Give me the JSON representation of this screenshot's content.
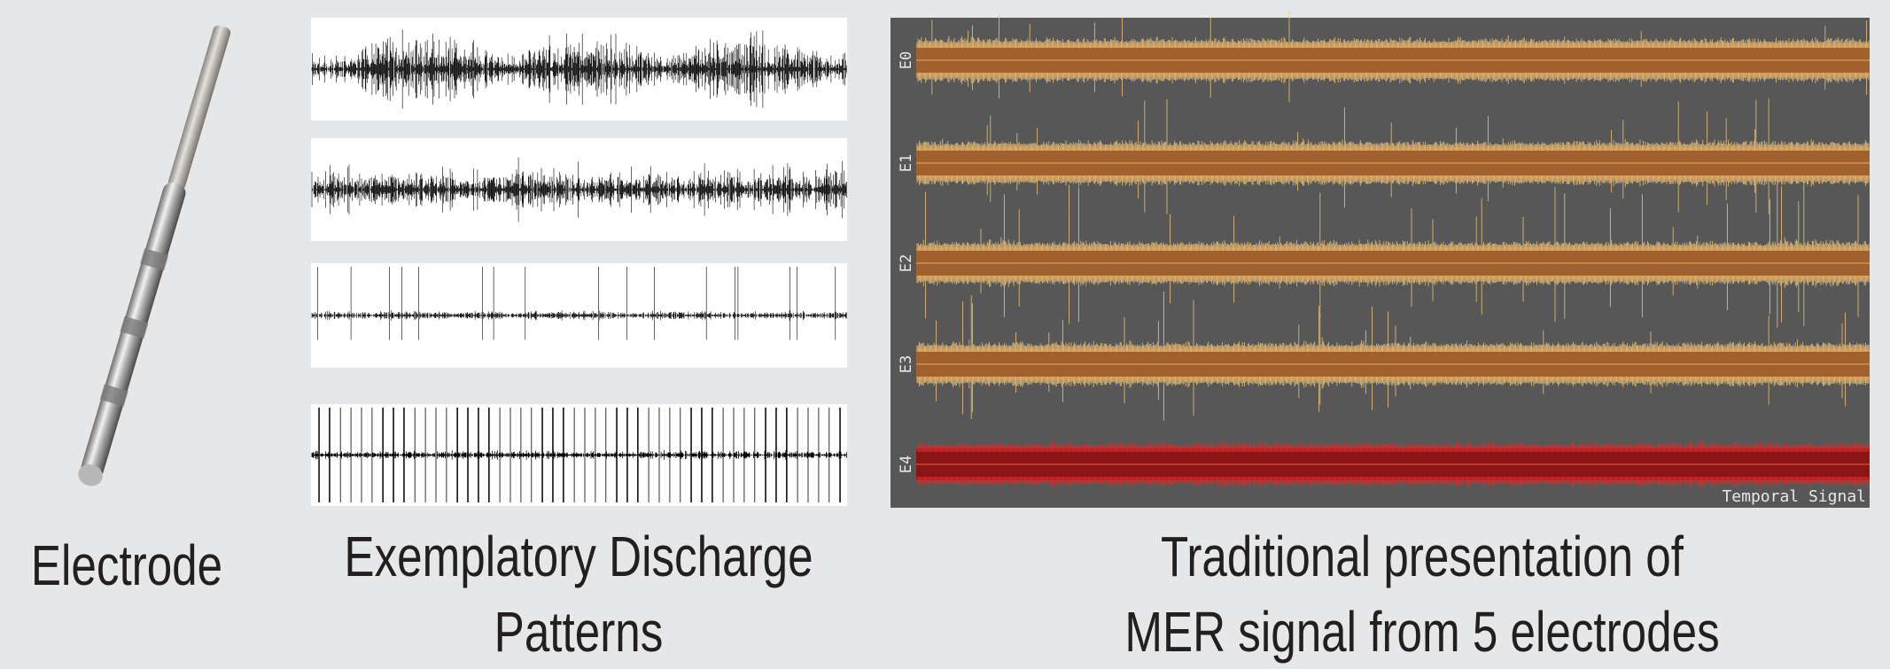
{
  "electrode": {
    "label": "Electrode"
  },
  "discharge_patterns": {
    "caption": [
      "Exemplatory Discharge",
      "Patterns"
    ]
  },
  "mer_panel": {
    "channels": [
      "E0",
      "E1",
      "E2",
      "E3",
      "E4"
    ],
    "axis_label": "Temporal Signal",
    "caption": [
      "Traditional presentation of",
      "MER signal from 5 electrodes"
    ]
  }
}
